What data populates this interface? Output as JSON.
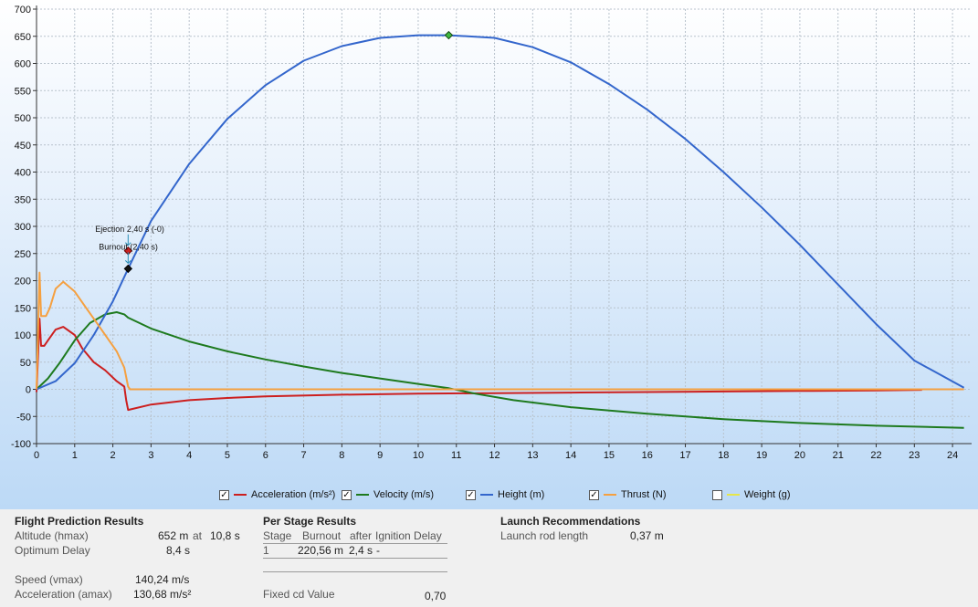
{
  "chart_data": {
    "type": "line",
    "xlabel": "",
    "ylabel": "",
    "xlim": [
      0,
      24.5
    ],
    "ylim": [
      -100,
      700
    ],
    "xticks": [
      0,
      1,
      2,
      3,
      4,
      5,
      6,
      7,
      8,
      9,
      10,
      11,
      12,
      13,
      14,
      15,
      16,
      17,
      18,
      19,
      20,
      21,
      22,
      23,
      24
    ],
    "yticks": [
      700,
      650,
      600,
      550,
      500,
      450,
      400,
      350,
      300,
      250,
      200,
      150,
      100,
      50,
      0,
      -50,
      -100
    ],
    "grid": true,
    "series": [
      {
        "name": "Acceleration (m/s²)",
        "color": "#cc1f1f",
        "checked": true,
        "x": [
          0,
          0.08,
          0.12,
          0.2,
          0.3,
          0.5,
          0.7,
          1.0,
          1.2,
          1.5,
          1.8,
          2.1,
          2.3,
          2.35,
          2.4,
          3.0,
          4.0,
          5.0,
          6.0,
          8.0,
          10.0,
          12.0,
          14.0,
          16.0,
          18.0,
          20.0,
          22.0,
          23.2
        ],
        "y": [
          -5,
          130,
          80,
          80,
          90,
          110,
          115,
          100,
          75,
          50,
          35,
          15,
          5,
          -20,
          -38,
          -28,
          -20,
          -16,
          -13,
          -10,
          -8,
          -7,
          -6,
          -5,
          -4,
          -3,
          -2,
          -1
        ]
      },
      {
        "name": "Velocity (m/s)",
        "color": "#1e7a1e",
        "checked": true,
        "x": [
          0,
          0.3,
          0.6,
          1.0,
          1.4,
          1.8,
          2.1,
          2.3,
          2.4,
          3.0,
          4.0,
          5.0,
          6.0,
          7.0,
          8.0,
          9.0,
          10.0,
          10.8,
          11.5,
          12.5,
          14.0,
          16.0,
          18.0,
          20.0,
          22.0,
          24.3
        ],
        "y": [
          0,
          20,
          48,
          90,
          122,
          138,
          142,
          138,
          132,
          112,
          88,
          70,
          55,
          42,
          30,
          20,
          10,
          2,
          -8,
          -20,
          -33,
          -45,
          -55,
          -62,
          -67,
          -71
        ]
      },
      {
        "name": "Height (m)",
        "color": "#3366cc",
        "checked": true,
        "x": [
          0,
          0.5,
          1.0,
          1.5,
          2.0,
          2.4,
          3.0,
          4.0,
          5.0,
          6.0,
          7.0,
          8.0,
          9.0,
          10.0,
          10.8,
          12.0,
          13.0,
          14.0,
          15.0,
          16.0,
          17.0,
          18.0,
          19.0,
          20.0,
          21.0,
          22.0,
          23.0,
          24.3
        ],
        "y": [
          0,
          15,
          48,
          100,
          162,
          222,
          310,
          415,
          498,
          560,
          605,
          632,
          647,
          652,
          652,
          647,
          630,
          602,
          562,
          515,
          461,
          400,
          335,
          266,
          193,
          120,
          53,
          3
        ]
      },
      {
        "name": "Thrust (N)",
        "color": "#f5a040",
        "checked": true,
        "x": [
          0,
          0.08,
          0.12,
          0.25,
          0.35,
          0.5,
          0.7,
          1.0,
          1.3,
          1.6,
          1.9,
          2.1,
          2.3,
          2.4,
          2.45,
          3.0,
          5.0,
          10.0,
          15.0,
          20.0,
          24.3
        ],
        "y": [
          0,
          215,
          135,
          135,
          150,
          185,
          198,
          180,
          150,
          120,
          90,
          70,
          40,
          5,
          0,
          0,
          0,
          0,
          0,
          0,
          0
        ]
      },
      {
        "name": "Weight (g)",
        "color": "#e6e64a",
        "checked": false,
        "x": [],
        "y": []
      }
    ],
    "annotations": [
      {
        "label": "Ejection 2,40 s (-0)",
        "x": 2.4,
        "y": 255
      },
      {
        "label": "Burnout (2,40 s)",
        "x": 2.4,
        "y": 222
      },
      {
        "label": "apogee",
        "x": 10.8,
        "y": 652
      }
    ]
  },
  "results": {
    "flight": {
      "title": "Flight Prediction Results",
      "altitude_label": "Altitude (hmax)",
      "altitude_value": "652 m",
      "at": "at",
      "altitude_time": "10,8 s",
      "delay_label": "Optimum Delay",
      "delay_value": "8,4 s",
      "speed_label": "Speed (vmax)",
      "speed_value": "140,24 m/s",
      "accel_label": "Acceleration (amax)",
      "accel_value": "130,68 m/s²"
    },
    "stage": {
      "title": "Per Stage Results",
      "headers": [
        "Stage",
        "Burnout",
        "after",
        "Ignition Delay"
      ],
      "row": [
        "1",
        "220,56 m",
        "2,4 s",
        "-"
      ],
      "cd_label": "Fixed cd Value",
      "cd_value": "0,70"
    },
    "launch": {
      "title": "Launch Recommendations",
      "rod_label": "Launch rod length",
      "rod_value": "0,37 m"
    }
  }
}
